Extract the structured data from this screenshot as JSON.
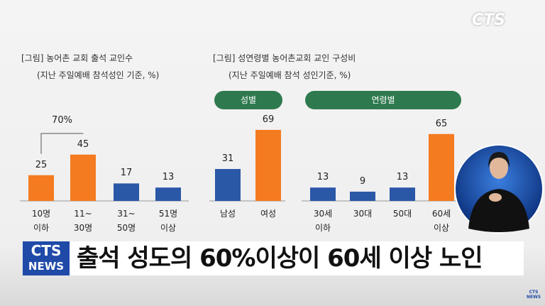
{
  "logo": "CTS",
  "chart_data": [
    {
      "type": "bar",
      "title": "[그림] 농어촌 교회 출석 교인수",
      "subtitle": "(지난 주일예배 참석성인 기준, %)",
      "categories": [
        "10명\n이하",
        "11~\n30명",
        "31~\n50명",
        "51명\n이상"
      ],
      "values": [
        25,
        45,
        17,
        13
      ],
      "colors": [
        "#f47b20",
        "#f47b20",
        "#2b57a7",
        "#2b57a7"
      ],
      "annotation": "70%"
    },
    {
      "type": "grouped-bar",
      "title": "[그림] 성연령별 농어촌교회 교인 구성비",
      "subtitle": "(지난 주일예배 참석 성인기준, %)",
      "groups": [
        {
          "name": "성별",
          "categories": [
            "남성",
            "여성"
          ],
          "values": [
            31,
            69
          ],
          "colors": [
            "#2b57a7",
            "#f47b20"
          ]
        },
        {
          "name": "연령별",
          "categories": [
            "30세\n이하",
            "30대",
            "50대",
            "60세\n이상"
          ],
          "values": [
            13,
            9,
            13,
            65
          ],
          "colors": [
            "#2b57a7",
            "#2b57a7",
            "#2b57a7",
            "#f47b20"
          ]
        }
      ]
    }
  ],
  "headline": {
    "badge_top": "CTS",
    "badge_bottom": "NEWS",
    "text": "출석 성도의 60%이상이 60세 이상 노인"
  },
  "corner_logo": "CTS NEWS"
}
